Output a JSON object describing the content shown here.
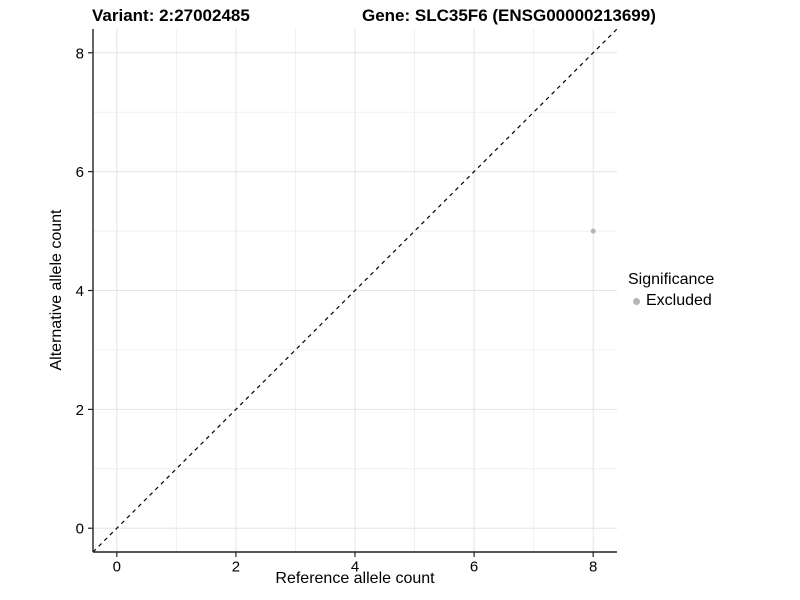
{
  "header": {
    "variant_title": "Variant: 2:27002485",
    "gene_title": "Gene: SLC35F6 (ENSG00000213699)"
  },
  "axes": {
    "x_label": "Reference allele count",
    "y_label": "Alternative allele count"
  },
  "legend": {
    "title": "Significance",
    "items": [
      {
        "label": "Excluded",
        "color": "#b5b5b5"
      }
    ]
  },
  "colors": {
    "background": "#ffffff",
    "axis_line": "#222222",
    "tick_mark": "#222222",
    "tick_text": "#000000",
    "grid_major": "#e4e4e4",
    "grid_minor": "#f0f0f0",
    "point": "#b5b5b5",
    "identity_line": "#000000"
  },
  "chart_data": {
    "type": "scatter",
    "title": "Variant: 2:27002485 | Gene: SLC35F6 (ENSG00000213699)",
    "xlabel": "Reference allele count",
    "ylabel": "Alternative allele count",
    "xlim": [
      -0.4,
      8.4
    ],
    "ylim": [
      -0.4,
      8.4
    ],
    "x_ticks": [
      0,
      2,
      4,
      6,
      8
    ],
    "y_ticks": [
      0,
      2,
      4,
      6,
      8
    ],
    "x_minor_ticks": [
      1,
      3,
      5,
      7
    ],
    "y_minor_ticks": [
      1,
      3,
      5,
      7
    ],
    "grid": true,
    "legend_position": "right",
    "series": [
      {
        "name": "Excluded",
        "color": "#b5b5b5",
        "point_radius": 2.5,
        "points": [
          {
            "x": 8,
            "y": 5
          }
        ]
      }
    ],
    "reference_line": {
      "type": "identity",
      "slope": 1,
      "intercept": 0,
      "style": "dashed",
      "color": "#000000"
    }
  }
}
